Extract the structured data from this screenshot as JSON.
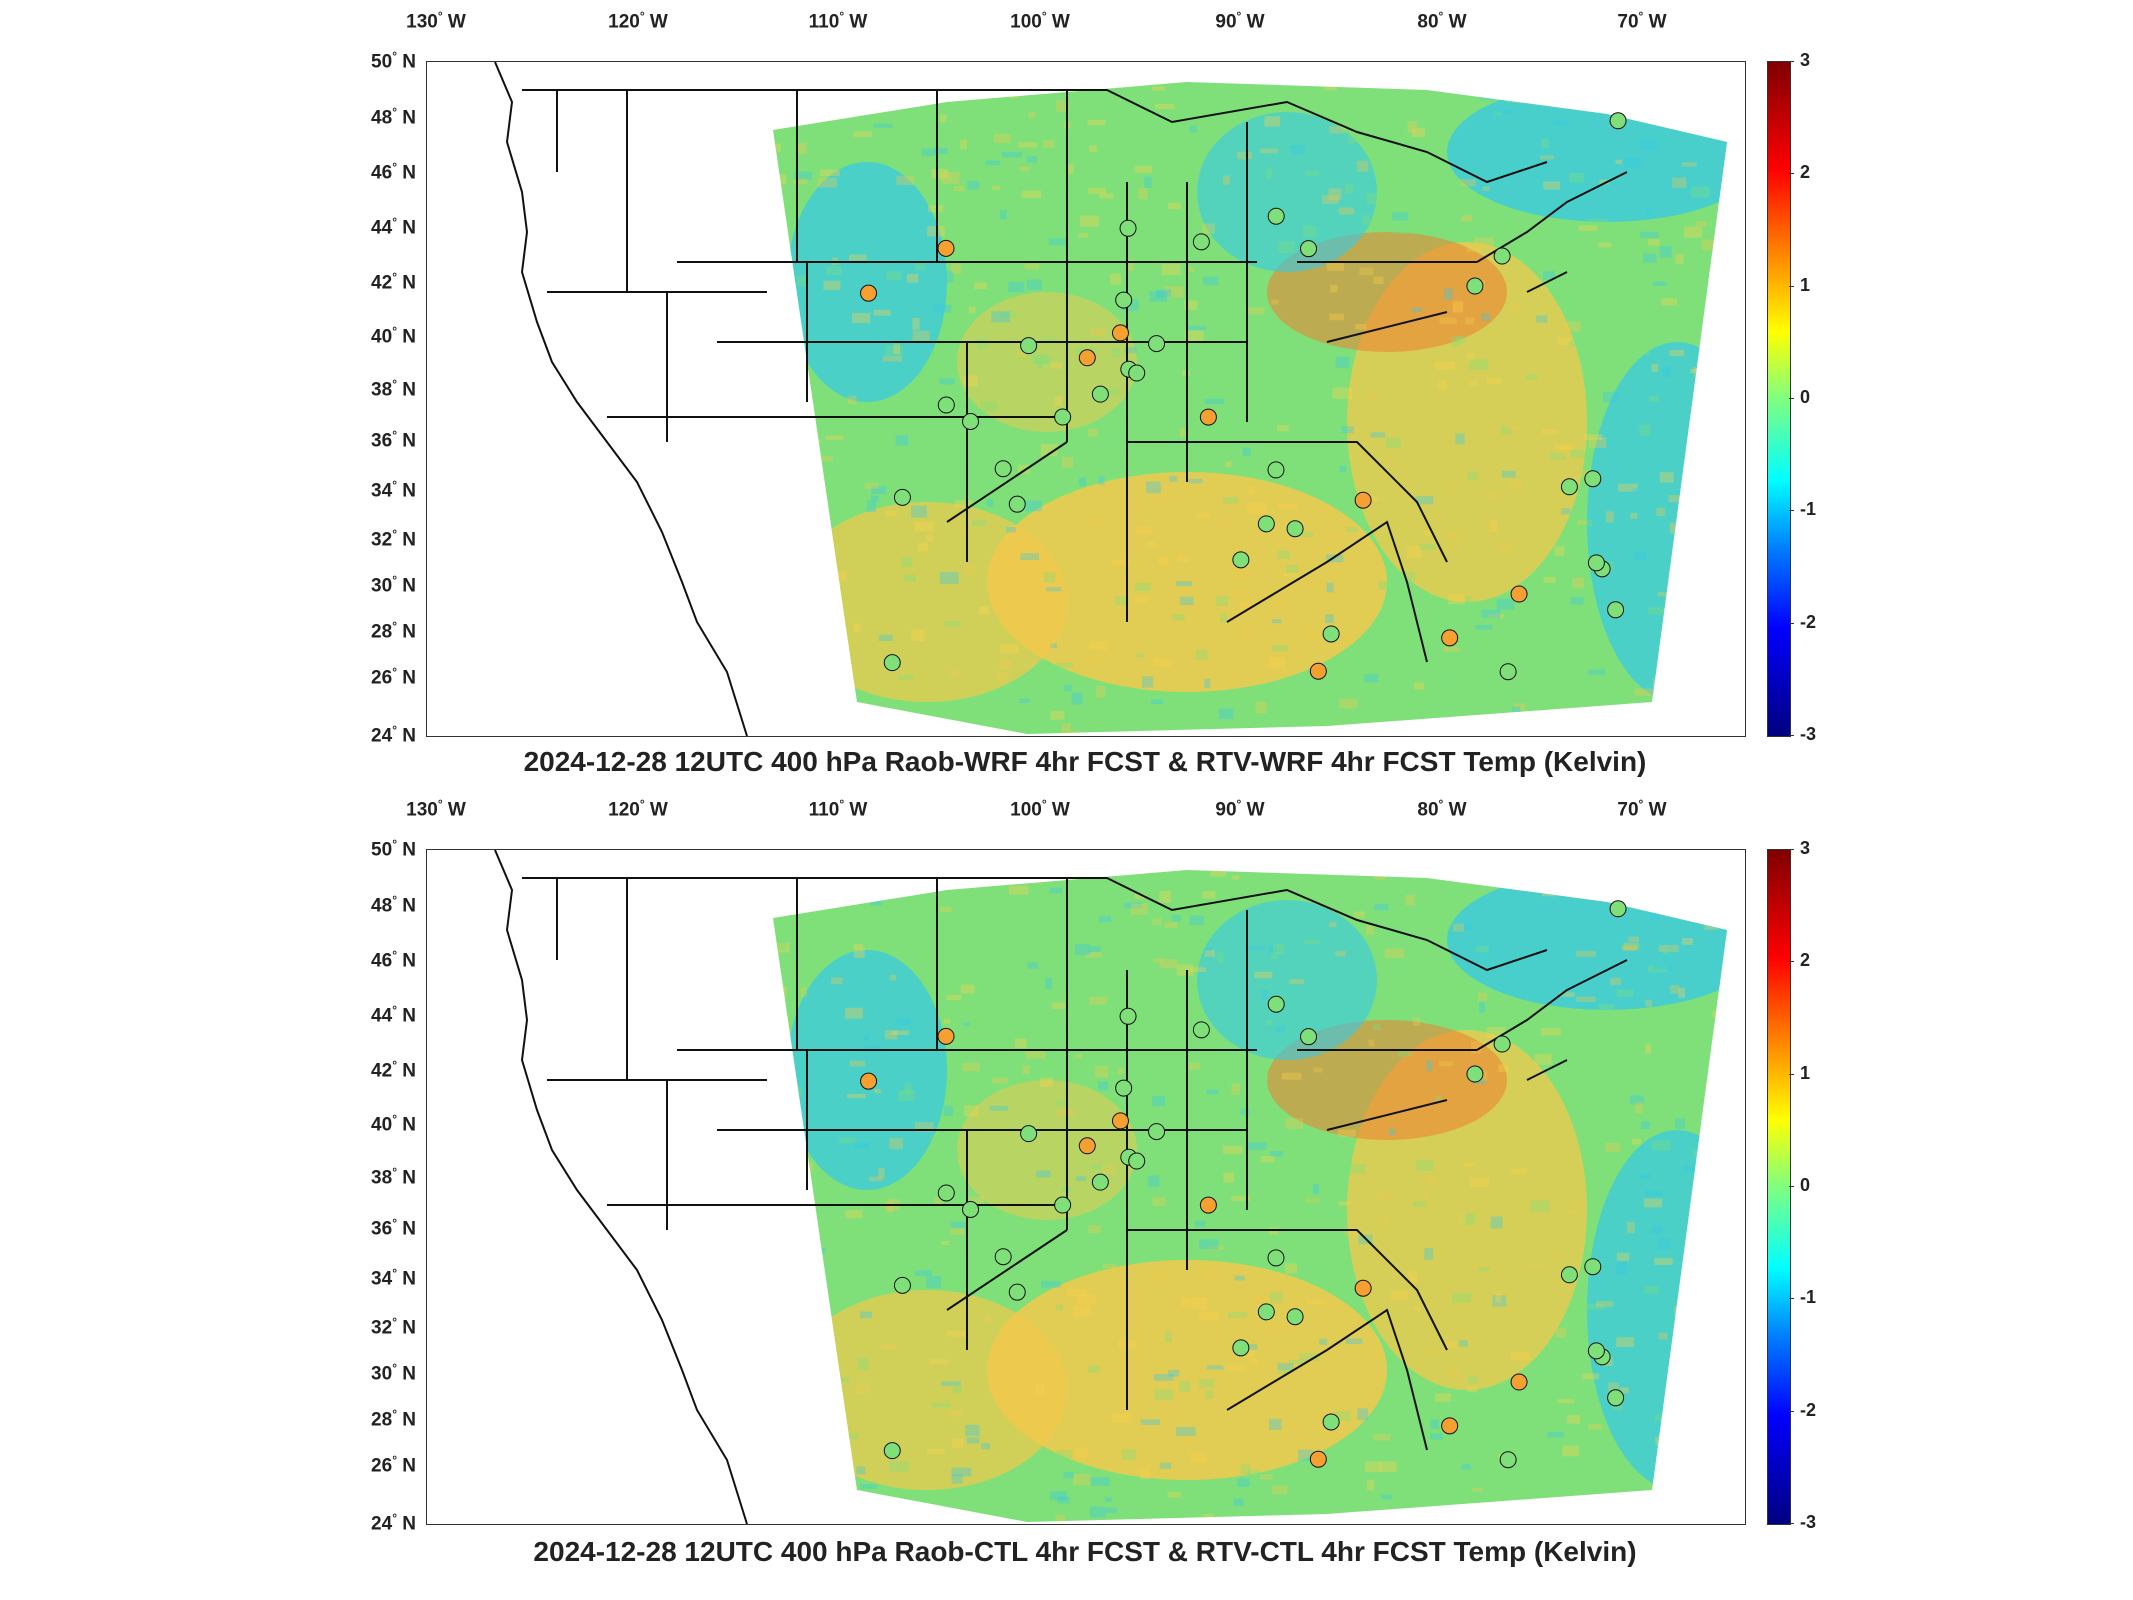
{
  "colors": {
    "land_background": "#ffffff",
    "field_warm": "#f2c94c",
    "field_neutral": "#7fe07a",
    "field_cool": "#35c9e8",
    "border": "#111111"
  },
  "icons": {
    "raob_station_marker": "circle-marker-icon"
  },
  "axes": {
    "lon_labels": [
      {
        "num": "130",
        "hemi": "W"
      },
      {
        "num": "120",
        "hemi": "W"
      },
      {
        "num": "110",
        "hemi": "W"
      },
      {
        "num": "100",
        "hemi": "W"
      },
      {
        "num": "90",
        "hemi": "W"
      },
      {
        "num": "80",
        "hemi": "W"
      },
      {
        "num": "70",
        "hemi": "W"
      }
    ],
    "lat_labels": [
      {
        "num": "50",
        "hemi": "N"
      },
      {
        "num": "48",
        "hemi": "N"
      },
      {
        "num": "46",
        "hemi": "N"
      },
      {
        "num": "44",
        "hemi": "N"
      },
      {
        "num": "42",
        "hemi": "N"
      },
      {
        "num": "40",
        "hemi": "N"
      },
      {
        "num": "38",
        "hemi": "N"
      },
      {
        "num": "36",
        "hemi": "N"
      },
      {
        "num": "34",
        "hemi": "N"
      },
      {
        "num": "32",
        "hemi": "N"
      },
      {
        "num": "30",
        "hemi": "N"
      },
      {
        "num": "28",
        "hemi": "N"
      },
      {
        "num": "26",
        "hemi": "N"
      },
      {
        "num": "24",
        "hemi": "N"
      }
    ]
  },
  "colorbar": {
    "ticks": [
      "3",
      "2",
      "1",
      "0",
      "-1",
      "-2",
      "-3"
    ],
    "range": [
      -3,
      3
    ],
    "colormap": "jet"
  },
  "panels": [
    {
      "title": "2024-12-28 12UTC 400 hPa Raob-WRF 4hr FCST & RTV-WRF 4hr FCST Temp (Kelvin)"
    },
    {
      "title": "2024-12-28 12UTC 400 hPa Raob-CTL 4hr FCST & RTV-CTL 4hr FCST Temp (Kelvin)"
    }
  ]
}
